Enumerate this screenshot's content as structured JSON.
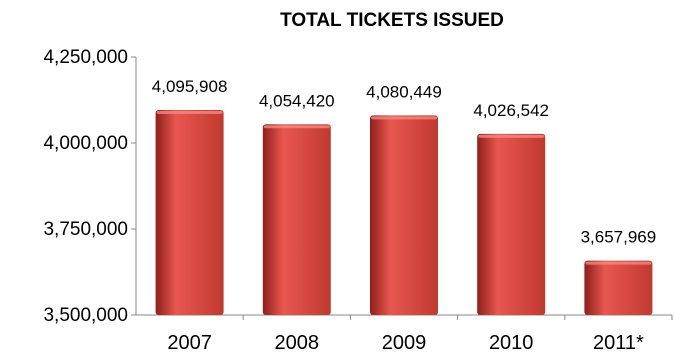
{
  "chart_data": {
    "type": "bar",
    "title": "TOTAL TICKETS ISSUED",
    "xlabel": "",
    "ylabel": "",
    "categories": [
      "2007",
      "2008",
      "2009",
      "2010",
      "2011*"
    ],
    "values": [
      4095908,
      4054420,
      4080449,
      4026542,
      3657969
    ],
    "data_labels": [
      "4,095,908",
      "4,054,420",
      "4,080,449",
      "4,026,542",
      "3,657,969"
    ],
    "ylim": [
      3500000,
      4250000
    ],
    "yticks": [
      3500000,
      3750000,
      4000000,
      4250000
    ],
    "ytick_labels": [
      "3,500,000",
      "3,750,000",
      "4,000,000",
      "4,250,000"
    ],
    "grid": false,
    "legend": "none",
    "colors": {
      "bar": "#c0392f",
      "bar_light": "#e8574f",
      "bar_dark": "#8e1f1c",
      "axis": "#888888"
    }
  }
}
